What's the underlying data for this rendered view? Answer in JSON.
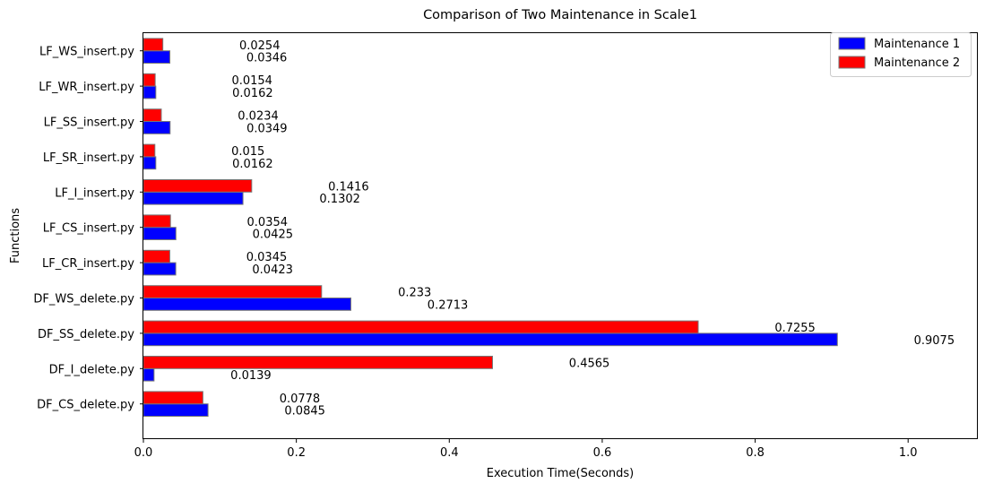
{
  "chart_data": {
    "type": "bar",
    "orientation": "horizontal",
    "title": "Comparison of Two Maintenance in Scale1",
    "xlabel": "Execution Time(Seconds)",
    "ylabel": "Functions",
    "xlim": [
      0,
      1.09
    ],
    "xticks": [
      0,
      0.2,
      0.4,
      0.6,
      0.8,
      1.0
    ],
    "xtick_labels": [
      "0.0",
      "0.2",
      "0.4",
      "0.6",
      "0.8",
      "1.0"
    ],
    "grid": false,
    "legend_position": "top-right",
    "categories": [
      "DF_CS_delete.py",
      "DF_I_delete.py",
      "DF_SS_delete.py",
      "DF_WS_delete.py",
      "LF_CR_insert.py",
      "LF_CS_insert.py",
      "LF_I_insert.py",
      "LF_SR_insert.py",
      "LF_SS_insert.py",
      "LF_WR_insert.py",
      "LF_WS_insert.py"
    ],
    "series": [
      {
        "name": "Maintenance 1",
        "color": "#0000ff",
        "values": [
          0.0845,
          0.0139,
          0.9075,
          0.2713,
          0.0423,
          0.0425,
          0.1302,
          0.0162,
          0.0349,
          0.0162,
          0.0346
        ],
        "labels": [
          "0.0845",
          "0.0139",
          "0.9075",
          "0.2713",
          "0.0423",
          "0.0425",
          "0.1302",
          "0.0162",
          "0.0349",
          "0.0162",
          "0.0346"
        ]
      },
      {
        "name": "Maintenance 2",
        "color": "#ff0000",
        "values": [
          0.0778,
          0.4565,
          0.7255,
          0.233,
          0.0345,
          0.0354,
          0.1416,
          0.015,
          0.0234,
          0.0154,
          0.0254
        ],
        "labels": [
          "0.0778",
          "0.4565",
          "0.7255",
          "0.233",
          "0.0345",
          "0.0354",
          "0.1416",
          "0.015",
          "0.0234",
          "0.0154",
          "0.0254"
        ]
      }
    ]
  }
}
